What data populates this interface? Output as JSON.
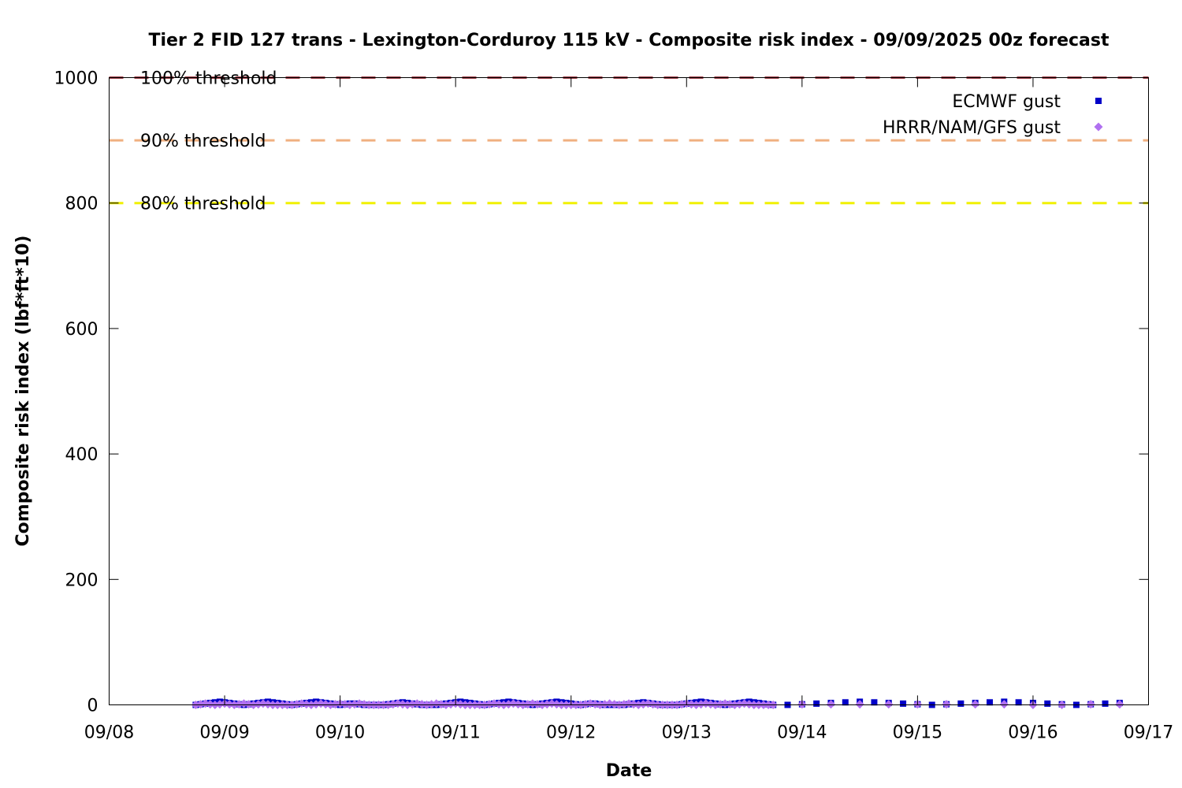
{
  "chart_data": {
    "type": "scatter",
    "title": "Tier 2 FID 127 trans - Lexington-Corduroy 115 kV - Composite risk index - 09/09/2025 00z forecast",
    "xlabel": "Date",
    "ylabel": "Composite risk index (lbf*ft*10)",
    "ylim": [
      0,
      1000
    ],
    "xlim_days": [
      0,
      9
    ],
    "x_tick_labels": [
      "09/08",
      "09/09",
      "09/10",
      "09/11",
      "09/12",
      "09/13",
      "09/14",
      "09/15",
      "09/16",
      "09/17"
    ],
    "y_ticks": [
      0,
      200,
      400,
      600,
      800,
      1000
    ],
    "y_tick_labels": [
      "0",
      "200",
      "400",
      "600",
      "800",
      "1000"
    ],
    "grid": false,
    "legend_position": "top-right",
    "thresholds": [
      {
        "label": "100% threshold",
        "value": 1000,
        "color": "#a0404a"
      },
      {
        "label": "90% threshold",
        "value": 900,
        "color": "#f0b080"
      },
      {
        "label": "80% threshold",
        "value": 800,
        "color": "#f0f000"
      }
    ],
    "series": [
      {
        "name": "ECMWF gust",
        "marker": "square",
        "color": "#0000c8",
        "dense_start": "09/08 18z",
        "dense_end": "09/13 18z",
        "dense_step_hours": 1,
        "sparse_start": "09/13 21z",
        "sparse_end": "09/16 18z",
        "sparse_step_hours": 3,
        "values": [
          0,
          1,
          2,
          3,
          4,
          5,
          4,
          3,
          2,
          1,
          0,
          1,
          2,
          3,
          4,
          5,
          4,
          3,
          2,
          1,
          0,
          1,
          2,
          3,
          4,
          5,
          4,
          3,
          2,
          1,
          0,
          1,
          2,
          2,
          1,
          0,
          0,
          0,
          0,
          0,
          1,
          2,
          3,
          4,
          3,
          2,
          1,
          0,
          0,
          0
        ]
      },
      {
        "name": "HRRR/NAM/GFS gust",
        "marker": "diamond",
        "color": "#b070f0",
        "dense_start": "09/08 18z",
        "dense_end": "09/13 18z",
        "dense_step_hours": 1,
        "sparse_start": "09/13 21z",
        "sparse_end": "09/16 18z",
        "sparse_step_hours": 3,
        "values": [
          0,
          1,
          2,
          1,
          0,
          1,
          2,
          1,
          0,
          1,
          2,
          1,
          0,
          1,
          2,
          1,
          0,
          0,
          0,
          0
        ]
      }
    ]
  }
}
